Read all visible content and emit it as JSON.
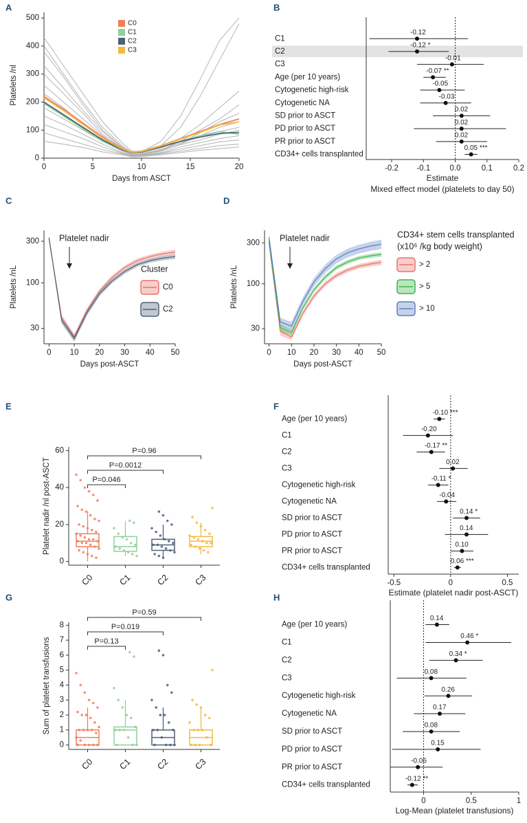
{
  "chart_data": [
    {
      "type": "line",
      "panel": "A",
      "xlabel": "Days from ASCT",
      "ylabel": "Platelets /nl",
      "x": [
        0,
        2,
        4,
        6,
        8,
        9,
        10,
        12,
        14,
        16,
        18,
        20
      ],
      "xlim": [
        0,
        20
      ],
      "xticks": [
        0,
        5,
        10,
        15,
        20
      ],
      "ylim": [
        0,
        520
      ],
      "yticks": [
        0,
        100,
        200,
        300,
        400,
        500
      ],
      "individual_color": "#b3b3b3",
      "individual_values": [
        [
          430,
          330,
          230,
          130,
          55,
          25,
          22,
          60,
          150,
          280,
          420,
          500
        ],
        [
          400,
          300,
          200,
          110,
          45,
          20,
          18,
          35,
          70,
          120,
          180,
          240
        ],
        [
          380,
          290,
          190,
          100,
          40,
          18,
          20,
          45,
          110,
          220,
          350,
          480
        ],
        [
          330,
          250,
          170,
          95,
          38,
          15,
          15,
          30,
          60,
          100,
          140,
          190
        ],
        [
          300,
          230,
          160,
          85,
          35,
          15,
          14,
          28,
          55,
          90,
          130,
          160
        ],
        [
          260,
          200,
          140,
          80,
          30,
          12,
          12,
          25,
          50,
          80,
          110,
          130
        ],
        [
          230,
          180,
          120,
          70,
          28,
          12,
          14,
          30,
          55,
          75,
          95,
          110
        ],
        [
          180,
          140,
          100,
          60,
          25,
          10,
          12,
          26,
          48,
          65,
          85,
          100
        ],
        [
          150,
          120,
          85,
          50,
          20,
          8,
          10,
          20,
          40,
          55,
          70,
          80
        ],
        [
          120,
          95,
          70,
          40,
          18,
          8,
          9,
          18,
          32,
          45,
          58,
          65
        ],
        [
          90,
          70,
          50,
          30,
          15,
          7,
          8,
          15,
          25,
          35,
          45,
          50
        ],
        [
          60,
          50,
          38,
          22,
          12,
          5,
          6,
          12,
          20,
          28,
          34,
          40
        ]
      ],
      "series": [
        {
          "name": "C0",
          "color": "#f07f5a",
          "values": [
            220,
            175,
            125,
            75,
            35,
            22,
            25,
            45,
            70,
            95,
            120,
            140
          ]
        },
        {
          "name": "C1",
          "color": "#8fd19e",
          "values": [
            195,
            150,
            105,
            60,
            30,
            20,
            22,
            40,
            60,
            80,
            95,
            85
          ]
        },
        {
          "name": "C2",
          "color": "#4d6278",
          "values": [
            200,
            155,
            110,
            65,
            30,
            20,
            22,
            40,
            60,
            75,
            88,
            92
          ]
        },
        {
          "name": "C3",
          "color": "#f5b942",
          "values": [
            215,
            170,
            120,
            72,
            33,
            21,
            24,
            44,
            68,
            92,
            118,
            130
          ]
        }
      ]
    },
    {
      "type": "forest",
      "panel": "B",
      "xlabel": "Estimate",
      "subtitle": "Mixed effect model (platelets to day 50)",
      "categories": [
        "C1",
        "C2",
        "C3",
        "Age (per 10 years)",
        "Cytogenetic high-risk",
        "Cytogenetic NA",
        "SD prior to ASCT",
        "PD prior to ASCT",
        "PR prior to ASCT",
        "CD34+ cells transplanted"
      ],
      "values": [
        -0.12,
        -0.12,
        -0.01,
        -0.07,
        -0.05,
        -0.03,
        0.02,
        0.02,
        0.02,
        0.05
      ],
      "value_labels": [
        "-0.12",
        "-0.12 *",
        "-0.01",
        "-0.07 **",
        "-0.05",
        "-0.03",
        "0.02",
        "0.02",
        "0.02",
        "0.05 ***"
      ],
      "lower": [
        -0.27,
        -0.21,
        -0.12,
        -0.1,
        -0.11,
        -0.11,
        -0.07,
        -0.13,
        -0.06,
        0.03
      ],
      "upper": [
        0.04,
        -0.02,
        0.09,
        -0.03,
        0.03,
        0.05,
        0.11,
        0.16,
        0.1,
        0.07
      ],
      "highlight": "C2",
      "reference_line": 0,
      "xlim": [
        -0.28,
        0.2
      ],
      "xticks": [
        -0.2,
        -0.1,
        {
          "value": 0,
          "label": "0.0"
        },
        0.1,
        0.2
      ]
    },
    {
      "type": "line",
      "panel": "C",
      "log_y": true,
      "xlabel": "Days post-ASCT",
      "ylabel": "Platelets /nL",
      "annotation": "Platelet nadir",
      "legend_title": "Cluster",
      "x": [
        0,
        5,
        10,
        15,
        20,
        25,
        30,
        35,
        40,
        45,
        50
      ],
      "xlim": [
        -2,
        50
      ],
      "xticks": [
        0,
        10,
        20,
        30,
        40,
        50
      ],
      "ylim": [
        20,
        400
      ],
      "yticks": [
        30,
        100,
        300
      ],
      "series": [
        {
          "name": "C0",
          "color": "#e8726b",
          "values": [
            320,
            40,
            24,
            48,
            80,
            115,
            150,
            180,
            200,
            215,
            225
          ],
          "lower": [
            305,
            37,
            22,
            45,
            75,
            108,
            142,
            170,
            189,
            202,
            210
          ],
          "upper": [
            335,
            43,
            26,
            51,
            85,
            122,
            158,
            190,
            211,
            228,
            240
          ]
        },
        {
          "name": "C2",
          "color": "#4d6278",
          "values": [
            330,
            37,
            23,
            45,
            75,
            105,
            135,
            162,
            180,
            192,
            200
          ],
          "lower": [
            315,
            34,
            21,
            42,
            70,
            99,
            127,
            153,
            170,
            181,
            188
          ],
          "upper": [
            345,
            40,
            25,
            48,
            80,
            111,
            143,
            171,
            190,
            203,
            212
          ]
        }
      ]
    },
    {
      "type": "line",
      "panel": "D",
      "log_y": true,
      "xlabel": "Days post-ASCT",
      "ylabel": "Platelets /nL",
      "annotation": "Platelet nadir",
      "legend_title": "CD34+ stem cells transplanted",
      "legend_subtitle": "(x10⁶ /kg body weight)",
      "x": [
        0,
        5,
        10,
        15,
        20,
        25,
        30,
        35,
        40,
        45,
        50
      ],
      "xlim": [
        -2,
        50
      ],
      "xticks": [
        0,
        10,
        20,
        30,
        40,
        50
      ],
      "ylim": [
        20,
        420
      ],
      "yticks": [
        30,
        100,
        300
      ],
      "series": [
        {
          "name": "> 2",
          "color": "#e8726b",
          "values": [
            300,
            28,
            24,
            45,
            72,
            100,
            125,
            145,
            160,
            170,
            178
          ],
          "lower": [
            285,
            25,
            22,
            42,
            67,
            94,
            117,
            136,
            150,
            159,
            165
          ],
          "upper": [
            315,
            31,
            26,
            48,
            77,
            106,
            133,
            154,
            170,
            181,
            191
          ]
        },
        {
          "name": "> 5",
          "color": "#3cb64a",
          "values": [
            320,
            31,
            27,
            52,
            85,
            120,
            155,
            180,
            200,
            212,
            220
          ],
          "lower": [
            305,
            28,
            25,
            49,
            80,
            113,
            146,
            170,
            189,
            200,
            207
          ],
          "upper": [
            335,
            34,
            29,
            55,
            90,
            127,
            164,
            190,
            211,
            224,
            233
          ]
        },
        {
          "name": "> 10",
          "color": "#5b7fc4",
          "values": [
            350,
            36,
            32,
            62,
            105,
            150,
            195,
            230,
            255,
            275,
            290
          ],
          "lower": [
            320,
            32,
            28,
            55,
            93,
            133,
            173,
            203,
            225,
            242,
            254
          ],
          "upper": [
            380,
            40,
            36,
            69,
            117,
            167,
            217,
            257,
            285,
            308,
            326
          ]
        }
      ]
    },
    {
      "type": "box",
      "panel": "E",
      "ylabel": "Platelet nadir /nl post-ASCT",
      "categories": [
        "C0",
        "C1",
        "C2",
        "C3"
      ],
      "colors": [
        "#f07f5a",
        "#8fd19e",
        "#4d6278",
        "#f5b942"
      ],
      "ylim": [
        -2,
        62
      ],
      "yticks": [
        0,
        20,
        40,
        60
      ],
      "boxes": [
        {
          "min": 0,
          "q1": 8,
          "median": 11,
          "q3": 15,
          "max": 27
        },
        {
          "min": 3,
          "q1": 5.5,
          "median": 8,
          "q3": 13.5,
          "max": 22
        },
        {
          "min": 2,
          "q1": 6,
          "median": 9,
          "q3": 12,
          "max": 20
        },
        {
          "min": 4,
          "q1": 8,
          "median": 11,
          "q3": 13.5,
          "max": 21
        }
      ],
      "points": [
        [
          47,
          44,
          40,
          38,
          36,
          33,
          30,
          28,
          27,
          25,
          23,
          22,
          20,
          19,
          18,
          17,
          16,
          15,
          14,
          13,
          12,
          12,
          11,
          11,
          10,
          10,
          9,
          8,
          7,
          6,
          5,
          4,
          3,
          2
        ],
        [
          22,
          21,
          18,
          15,
          13,
          12,
          10,
          9,
          8,
          7,
          6,
          5,
          4,
          3
        ],
        [
          27,
          25,
          22,
          20,
          18,
          16,
          14,
          12,
          11,
          10,
          9,
          9,
          8,
          7,
          6,
          5,
          4,
          3,
          2
        ],
        [
          29,
          24,
          21,
          19,
          17,
          15,
          14,
          13,
          12,
          11,
          10,
          10,
          9,
          8,
          7,
          6,
          5
        ]
      ],
      "comparisons": [
        {
          "from": "C0",
          "to": "C1",
          "label": "P=0.046"
        },
        {
          "from": "C0",
          "to": "C2",
          "label": "P=0.0012"
        },
        {
          "from": "C0",
          "to": "C3",
          "label": "P=0.96"
        }
      ]
    },
    {
      "type": "forest",
      "panel": "F",
      "xlabel": "Estimate (platelet nadir post-ASCT)",
      "categories": [
        "Age (per 10 years)",
        "C1",
        "C2",
        "C3",
        "Cytogenetic high-risk",
        "Cytogenetic NA",
        "SD prior to ASCT",
        "PD prior to ASCT",
        "PR prior to ASCT",
        "CD34+ cells transplanted"
      ],
      "values": [
        -0.1,
        -0.2,
        -0.17,
        0.02,
        -0.11,
        -0.04,
        0.14,
        0.14,
        0.1,
        0.06
      ],
      "value_labels": [
        "-0.10 ***",
        "-0.20",
        "-0.17 **",
        "0.02",
        "-0.11 *",
        "-0.04",
        "0.14 *",
        "0.14",
        "0.10",
        "0.06 ***"
      ],
      "lower": [
        -0.15,
        -0.42,
        -0.3,
        -0.1,
        -0.2,
        -0.12,
        0.02,
        -0.05,
        0,
        0.03
      ],
      "upper": [
        -0.05,
        0.02,
        -0.05,
        0.15,
        -0.02,
        0.05,
        0.26,
        0.33,
        0.2,
        0.09
      ],
      "reference_line": 0,
      "xlim": [
        -0.55,
        0.6
      ],
      "xticks": [
        -0.5,
        0,
        0.5
      ]
    },
    {
      "type": "box",
      "panel": "G",
      "ylabel": "Sum of platelet transfusions",
      "categories": [
        "C0",
        "C1",
        "C2",
        "C3"
      ],
      "colors": [
        "#f07f5a",
        "#8fd19e",
        "#4d6278",
        "#f5b942"
      ],
      "ylim": [
        -0.3,
        8.2
      ],
      "yticks": [
        0,
        1,
        2,
        3,
        4,
        5,
        6,
        7,
        8
      ],
      "boxes": [
        {
          "min": 0,
          "q1": 0,
          "median": 0.5,
          "q3": 1,
          "max": 2.5
        },
        {
          "min": 0,
          "q1": 0,
          "median": 1,
          "q3": 1.2,
          "max": 3
        },
        {
          "min": 0,
          "q1": 0,
          "median": 0.5,
          "q3": 1,
          "max": 2.5
        },
        {
          "min": 0,
          "q1": 0,
          "median": 0.5,
          "q3": 1,
          "max": 2.5
        }
      ],
      "points": [
        [
          4.8,
          4,
          3.5,
          3,
          2.8,
          2.5,
          2.2,
          2,
          2,
          1.8,
          1.5,
          1.2,
          1,
          1,
          1,
          1,
          0.8,
          0.5,
          0.3,
          0,
          0,
          0,
          0,
          0
        ],
        [
          6.2,
          5.9,
          3.8,
          3,
          2.5,
          2,
          1.8,
          1.2,
          1,
          1,
          1,
          0.5,
          0,
          0,
          0
        ],
        [
          6.3,
          6,
          4,
          3.5,
          3,
          2.5,
          2,
          2,
          1.5,
          1,
          1,
          1,
          0.5,
          0,
          0,
          0,
          0
        ],
        [
          5,
          3,
          2.7,
          2.5,
          2,
          1.8,
          1.5,
          1,
          1,
          1,
          0.5,
          0,
          0,
          0,
          0
        ]
      ],
      "comparisons": [
        {
          "from": "C0",
          "to": "C1",
          "label": "P=0.13"
        },
        {
          "from": "C0",
          "to": "C2",
          "label": "P=0.019"
        },
        {
          "from": "C0",
          "to": "C3",
          "label": "P=0.59"
        }
      ]
    },
    {
      "type": "forest",
      "panel": "H",
      "xlabel": "Log-Mean (platelet transfusions)",
      "categories": [
        "Age (per 10 years)",
        "C1",
        "C2",
        "C3",
        "Cytogenetic high-risk",
        "Cytogenetic NA",
        "SD prior to ASCT",
        "PD prior to ASCT",
        "PR prior to ASCT",
        "CD34+ cells transplanted"
      ],
      "values": [
        0.14,
        0.46,
        0.34,
        0.08,
        0.26,
        0.17,
        0.08,
        0.15,
        -0.06,
        -0.12
      ],
      "value_labels": [
        "0.14",
        "0.46 *",
        "0.34 *",
        "0.08",
        "0.26",
        "0.17",
        "0.08",
        "0.15",
        "-0.06",
        "-0.12 **"
      ],
      "lower": [
        0.02,
        0.02,
        0.06,
        -0.28,
        0.01,
        -0.1,
        -0.22,
        -0.33,
        -0.35,
        -0.17
      ],
      "upper": [
        0.27,
        0.92,
        0.62,
        0.45,
        0.51,
        0.44,
        0.38,
        0.6,
        0.2,
        -0.06
      ],
      "reference_line": 0,
      "xlim": [
        -0.35,
        1
      ],
      "xticks": [
        0,
        0.5,
        1
      ]
    }
  ]
}
